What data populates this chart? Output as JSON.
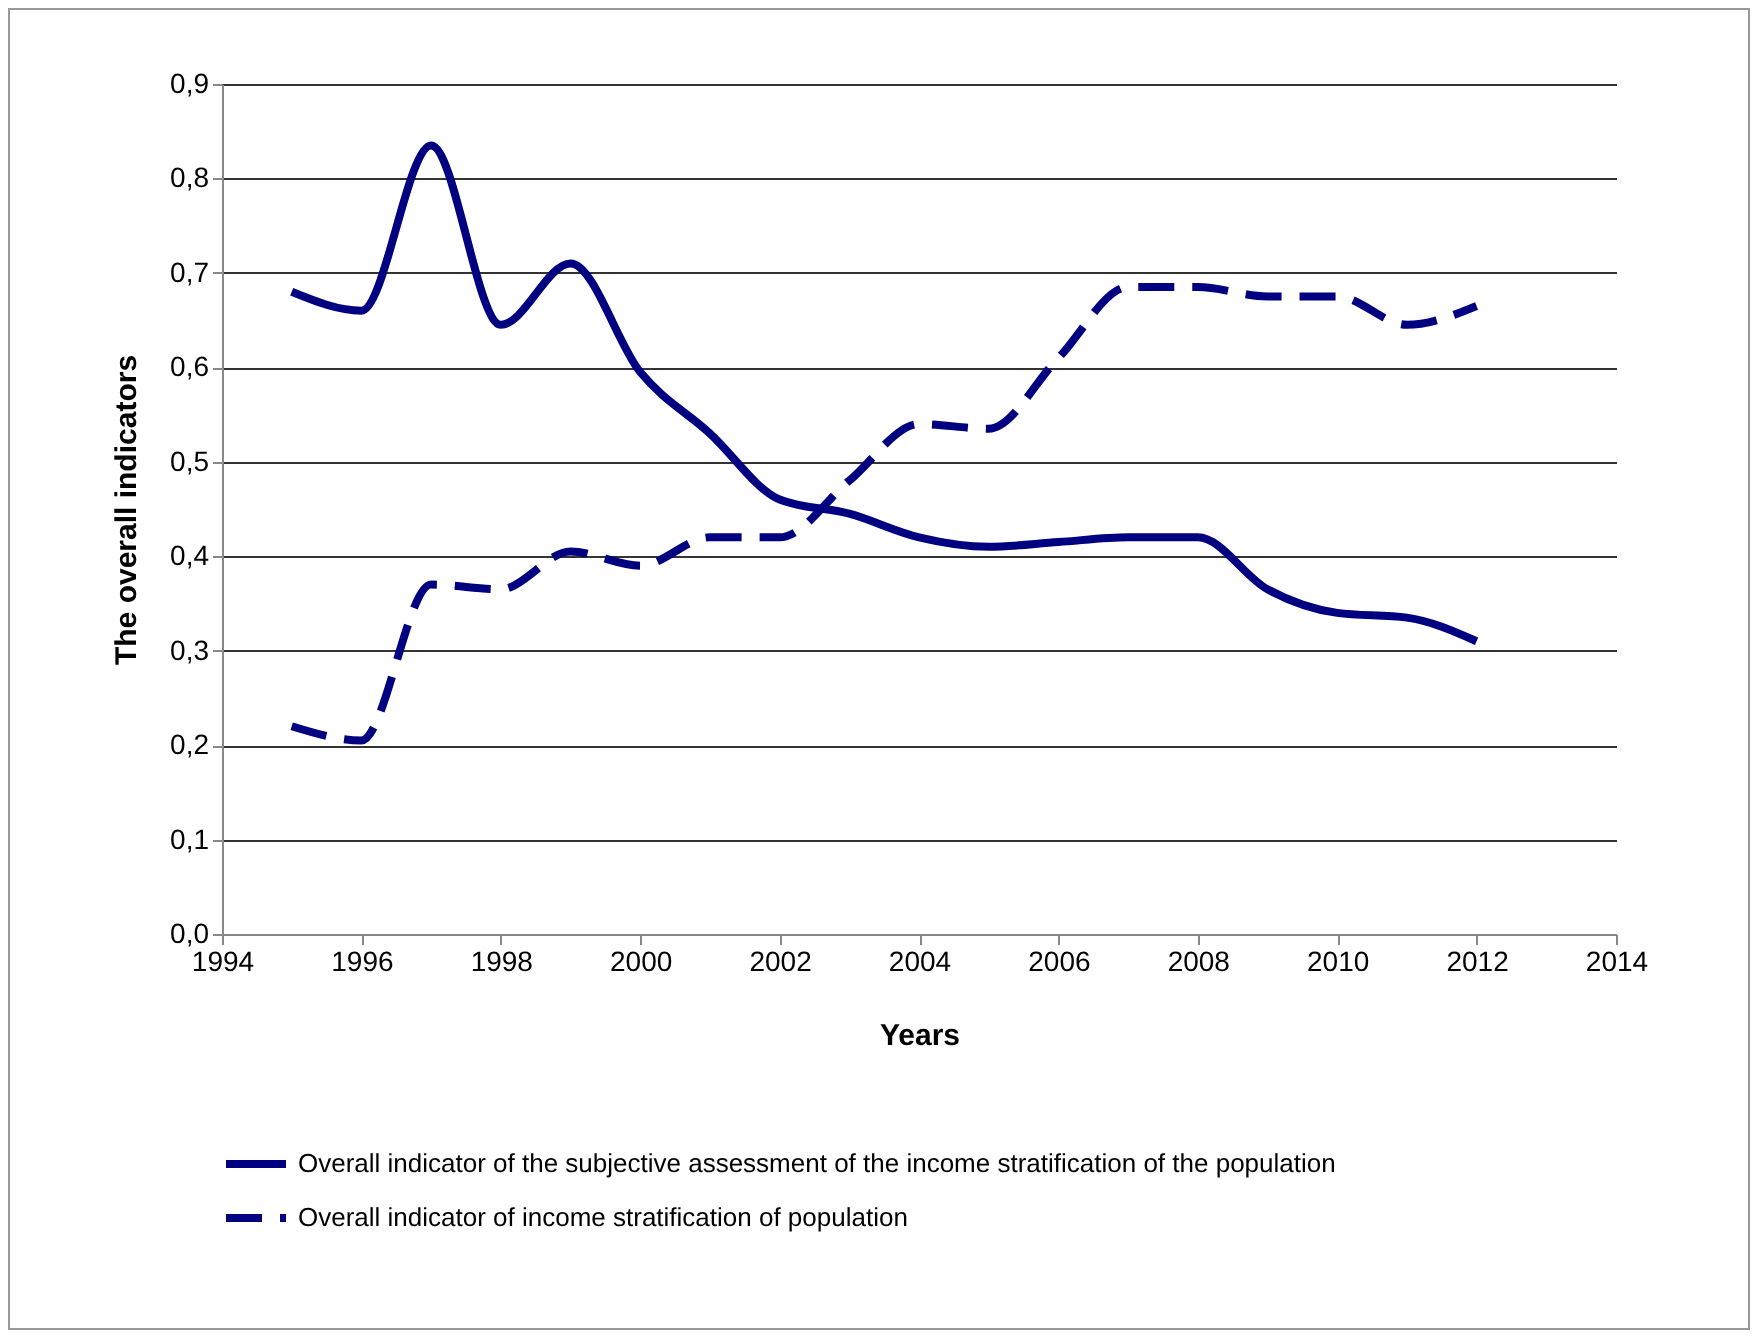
{
  "chart_data": {
    "type": "line",
    "xlabel": "Years",
    "ylabel": "The overall indicators",
    "x": [
      1995,
      1996,
      1997,
      1998,
      1999,
      2000,
      2001,
      2002,
      2003,
      2004,
      2005,
      2006,
      2007,
      2008,
      2009,
      2010,
      2011,
      2012
    ],
    "series": [
      {
        "name": "Overall indicator of the subjective assessment of the income stratification of the population",
        "color": "#000080",
        "line_style": "solid",
        "values": [
          0.68,
          0.66,
          0.835,
          0.645,
          0.71,
          0.595,
          0.53,
          0.46,
          0.445,
          0.42,
          0.41,
          0.415,
          0.42,
          0.42,
          0.365,
          0.34,
          0.335,
          0.31
        ]
      },
      {
        "name": "Overall indicator of income stratification of population",
        "color": "#000080",
        "line_style": "dashed",
        "values": [
          0.22,
          0.205,
          0.37,
          0.365,
          0.405,
          0.39,
          0.42,
          0.42,
          0.48,
          0.54,
          0.535,
          0.61,
          0.685,
          0.685,
          0.675,
          0.675,
          0.645,
          0.665
        ]
      }
    ],
    "xlim": [
      1994,
      2014
    ],
    "xticks": [
      1994,
      1996,
      1998,
      2000,
      2002,
      2004,
      2006,
      2008,
      2010,
      2012,
      2014
    ],
    "ylim": [
      0,
      0.9
    ],
    "yticks": [
      {
        "value": 0,
        "label": "0,0"
      },
      {
        "value": 0.1,
        "label": "0,1"
      },
      {
        "value": 0.2,
        "label": "0,2"
      },
      {
        "value": 0.3,
        "label": "0,3"
      },
      {
        "value": 0.4,
        "label": "0,4"
      },
      {
        "value": 0.5,
        "label": "0,5"
      },
      {
        "value": 0.6,
        "label": "0,6"
      },
      {
        "value": 0.7,
        "label": "0,7"
      },
      {
        "value": 0.8,
        "label": "0,8"
      },
      {
        "value": 0.9,
        "label": "0,9"
      }
    ],
    "grid": "y",
    "legend": "bottom",
    "marker": "none"
  }
}
